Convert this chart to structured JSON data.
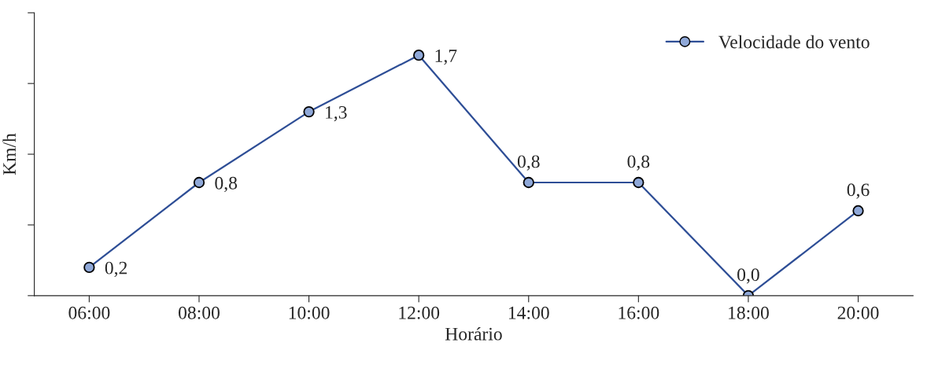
{
  "chart_data": {
    "type": "line",
    "xlabel": "Horário",
    "ylabel": "Km/h",
    "categories": [
      "06:00",
      "08:00",
      "10:00",
      "12:00",
      "14:00",
      "16:00",
      "18:00",
      "20:00"
    ],
    "series": [
      {
        "name": "Velocidade do vento",
        "color": "#2e4e96",
        "values": [
          0.2,
          0.8,
          1.3,
          1.7,
          0.8,
          0.8,
          0.0,
          0.6
        ],
        "value_labels": [
          "0,2",
          "0,8",
          "1,3",
          "1,7",
          "0,8",
          "0,8",
          "0,0",
          "0,6"
        ]
      }
    ],
    "ylim": [
      0,
      2.0
    ],
    "yticks": [
      {
        "value": 0,
        "label": null
      },
      {
        "value": 0.5,
        "label": null
      },
      {
        "value": 1.0,
        "label": null
      },
      {
        "value": 1.5,
        "label": null
      },
      {
        "value": 2.0,
        "label": null
      }
    ],
    "marker": "circle",
    "line_style": "solid",
    "grid": false,
    "legend": "top right"
  }
}
